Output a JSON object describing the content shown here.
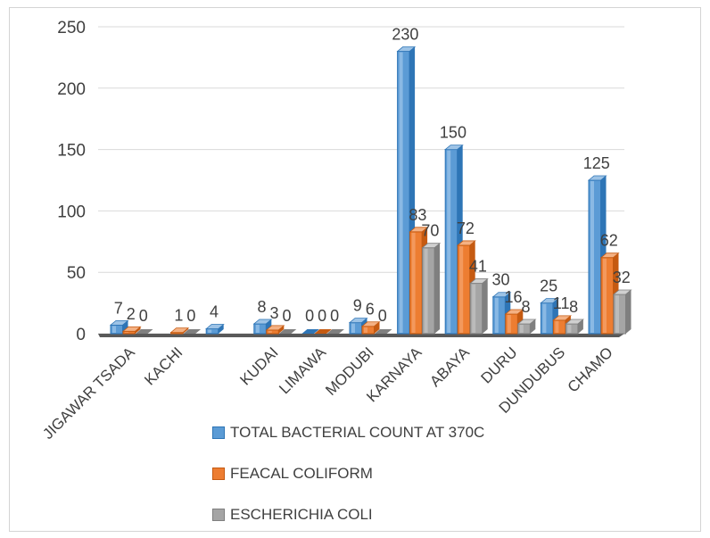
{
  "chart_data": {
    "type": "bar",
    "categories": [
      "JIGAWAR TSADA",
      "KACHI",
      "",
      "KUDAI",
      "LIMAWA",
      "MODUBI",
      "KARNAYA",
      "ABAYA",
      "DURU",
      "DUNDUBUS",
      "CHAMO"
    ],
    "series": [
      {
        "name": "TOTAL BACTERIAL COUNT AT 370C",
        "values": [
          7,
          null,
          4,
          8,
          0,
          9,
          230,
          150,
          30,
          25,
          125
        ],
        "color": "#5b9bd5"
      },
      {
        "name": "FEACAL COLIFORM",
        "values": [
          2,
          1,
          null,
          3,
          0,
          6,
          83,
          72,
          16,
          11,
          62
        ],
        "color": "#ed7d31"
      },
      {
        "name": "ESCHERICHIA COLI",
        "values": [
          0,
          0,
          null,
          0,
          0,
          0,
          70,
          41,
          8,
          8,
          32
        ],
        "color": "#a5a5a5"
      }
    ],
    "ylim": [
      0,
      250
    ],
    "yticks": [
      0,
      50,
      100,
      150,
      200,
      250
    ],
    "grid": true,
    "legend": "bottom"
  }
}
